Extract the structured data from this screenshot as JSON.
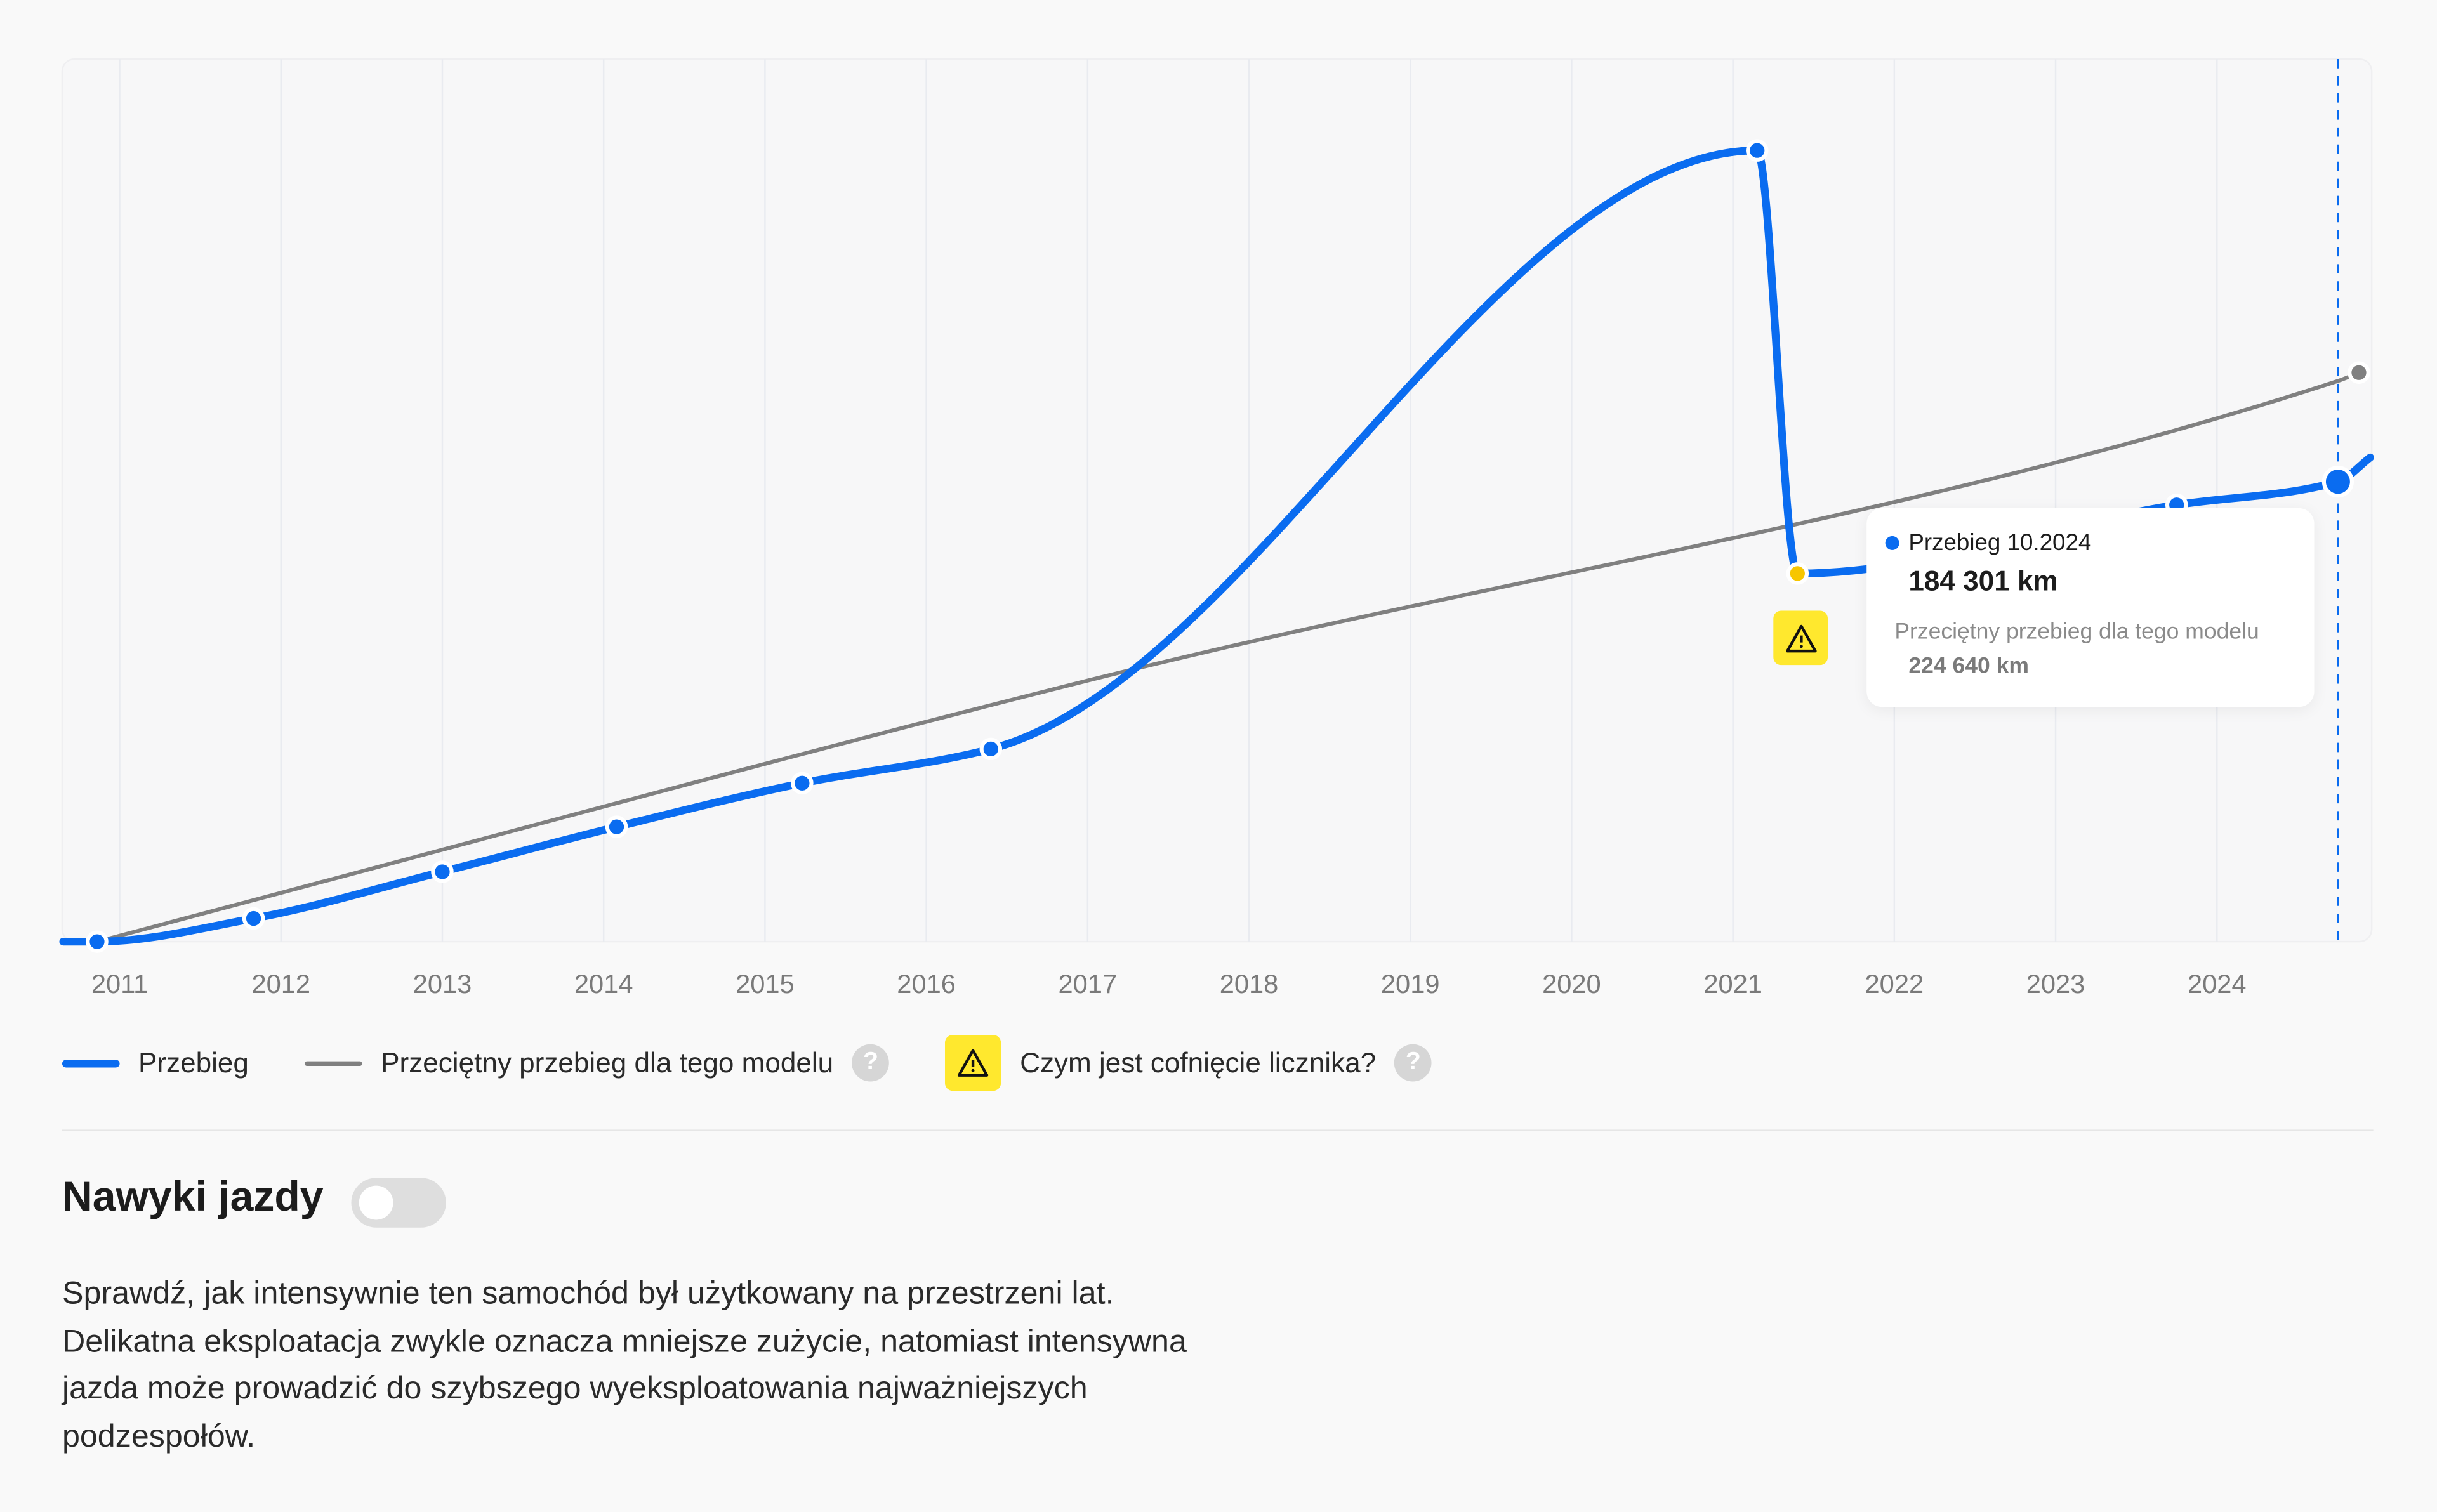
{
  "chart_data": {
    "type": "line",
    "title": "",
    "xlabel": "",
    "ylabel": "",
    "x_ticks": [
      "2011",
      "2012",
      "2013",
      "2014",
      "2015",
      "2016",
      "2017",
      "2018",
      "2019",
      "2020",
      "2021",
      "2022",
      "2023",
      "2024"
    ],
    "xlim": [
      2010.65,
      2024.95
    ],
    "ylim": [
      0,
      350000
    ],
    "grid": "vertical",
    "legend_position": "bottom-left",
    "series": [
      {
        "name": "Przebieg",
        "color": "#0a6cf0",
        "points": [
          [
            2010.65,
            0
          ],
          [
            2010.86,
            0
          ],
          [
            2011.83,
            9300
          ],
          [
            2013.0,
            28000
          ],
          [
            2014.08,
            46000
          ],
          [
            2015.23,
            63500
          ],
          [
            2016.4,
            77200
          ],
          [
            2021.15,
            317000
          ],
          [
            2021.4,
            147500
          ],
          [
            2023.75,
            175000
          ],
          [
            2024.75,
            184301
          ],
          [
            2024.95,
            194000
          ]
        ],
        "markers": [
          1,
          2,
          3,
          4,
          5,
          6,
          7,
          8,
          9,
          10
        ]
      },
      {
        "name": "Przeciętny przebieg dla tego modelu",
        "color": "#808080",
        "points": [
          [
            2010.86,
            0
          ],
          [
            2017.0,
            104600
          ],
          [
            2024.75,
            224640
          ],
          [
            2024.88,
            228000
          ]
        ],
        "markers": [
          3
        ]
      }
    ],
    "rollback_point_index": 8,
    "highlight_x": 2024.75
  },
  "tooltip": {
    "title": "Przebieg 10.2024",
    "value": "184 301 km",
    "avg_label": "Przeciętny przebieg dla tego modelu",
    "avg_value": "224 640 km"
  },
  "legend": {
    "mileage": "Przebieg",
    "average": "Przeciętny przebieg dla tego modelu",
    "rollback": "Czym jest cofnięcie licznika?",
    "help": "?"
  },
  "colors": {
    "blue": "#0a6cf0",
    "gray": "#808080",
    "warning": "#ffe82e",
    "rollback_dot": "#f7c600"
  },
  "habits": {
    "title": "Nawyki jazdy",
    "toggle_on": false,
    "description": "Sprawdź, jak intensywnie ten samochód był użytkowany na przestrzeni lat. Delikatna eksploatacja zwykle oznacza mniejsze zużycie, natomiast intensywna jazda może prowadzić do szybszego wyeksploatowania najważniejszych podzespołów."
  }
}
